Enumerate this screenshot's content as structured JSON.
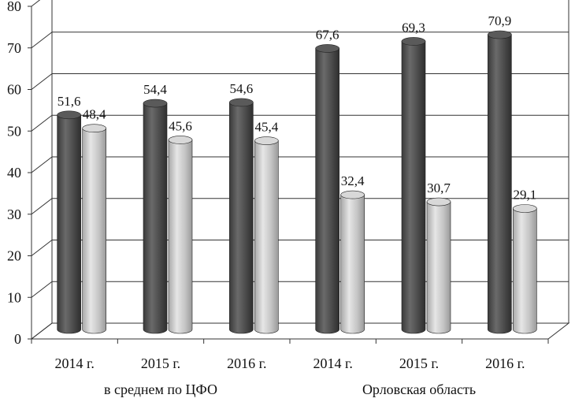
{
  "chart_data": {
    "type": "bar",
    "title": "",
    "xlabel": "",
    "ylabel": "",
    "ylim": [
      0,
      80
    ],
    "yticks": [
      0,
      10,
      20,
      30,
      40,
      50,
      60,
      70,
      80
    ],
    "grid": true,
    "categories": [
      "2014 г.",
      "2015 г.",
      "2016 г.",
      "2014 г.",
      "2015 г.",
      "2016 г."
    ],
    "groups": [
      {
        "label": "в среднем по ЦФО"
      },
      {
        "label": "Орловская область"
      }
    ],
    "series": [
      {
        "values": [
          51.6,
          54.4,
          54.6,
          67.6,
          69.3,
          70.9
        ],
        "labels": [
          "51,6",
          "54,4",
          "54,6",
          "67,6",
          "69,3",
          "70,9"
        ],
        "color": "#4a4a4a"
      },
      {
        "values": [
          48.4,
          45.6,
          45.4,
          32.4,
          30.7,
          29.1
        ],
        "labels": [
          "48,4",
          "45,6",
          "45,4",
          "32,4",
          "30,7",
          "29,1"
        ],
        "color": "#bdbdbd"
      }
    ]
  }
}
